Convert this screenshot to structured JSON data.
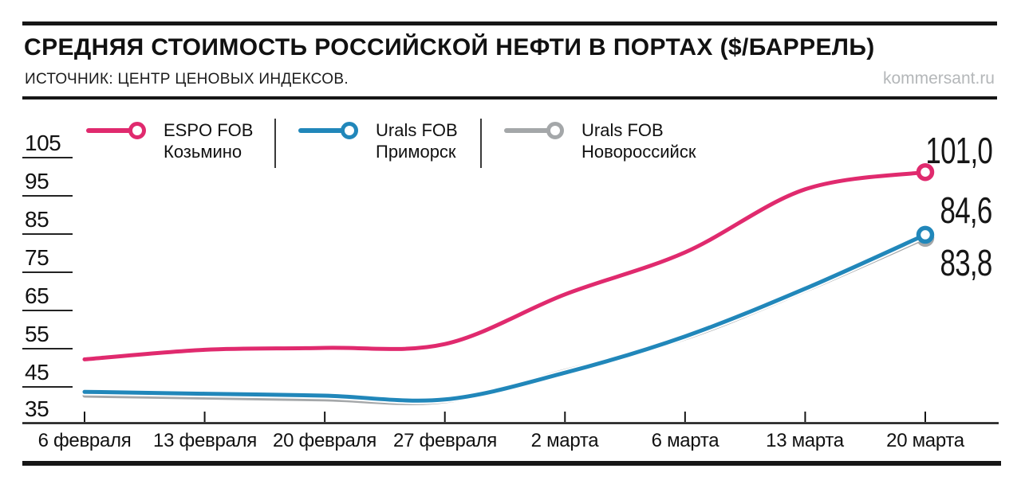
{
  "header": {
    "title": "СРЕДНЯЯ СТОИМОСТЬ РОССИЙСКОЙ НЕФТИ В ПОРТАХ ($/БАРРЕЛЬ)",
    "source": "ИСТОЧНИК: ЦЕНТР ЦЕНОВЫХ ИНДЕКСОВ.",
    "watermark": "kommersant.ru"
  },
  "chart_data": {
    "type": "line",
    "title": "Средняя стоимость российской нефти в портах ($/баррель)",
    "categories": [
      "6 февраля",
      "13 февраля",
      "20 февраля",
      "27 февраля",
      "2 марта",
      "6 марта",
      "13 марта",
      "20 марта"
    ],
    "yticks": [
      105,
      95,
      85,
      75,
      65,
      55,
      45,
      35
    ],
    "ylim": [
      35,
      110
    ],
    "grid": false,
    "legend_position": "top",
    "axis_color": "#161616",
    "series": [
      {
        "name": "ESPO FOB",
        "port": "Козьмино",
        "color": "#e02a6e",
        "values": [
          52,
          54.5,
          55,
          56,
          69,
          80,
          96.5,
          101.0
        ],
        "end_label": "101,0"
      },
      {
        "name": "Urals FOB",
        "port": "Приморск",
        "color": "#2187ba",
        "values": [
          43.5,
          43,
          42.5,
          41.5,
          48.5,
          58,
          70.5,
          84.6
        ],
        "end_label": "84,6"
      },
      {
        "name": "Urals FOB",
        "port": "Новороссийск",
        "color": "#a4a7a9",
        "values": [
          42.5,
          42,
          41.5,
          41,
          49,
          57.5,
          70,
          83.8
        ],
        "end_label": "83,8"
      }
    ]
  }
}
